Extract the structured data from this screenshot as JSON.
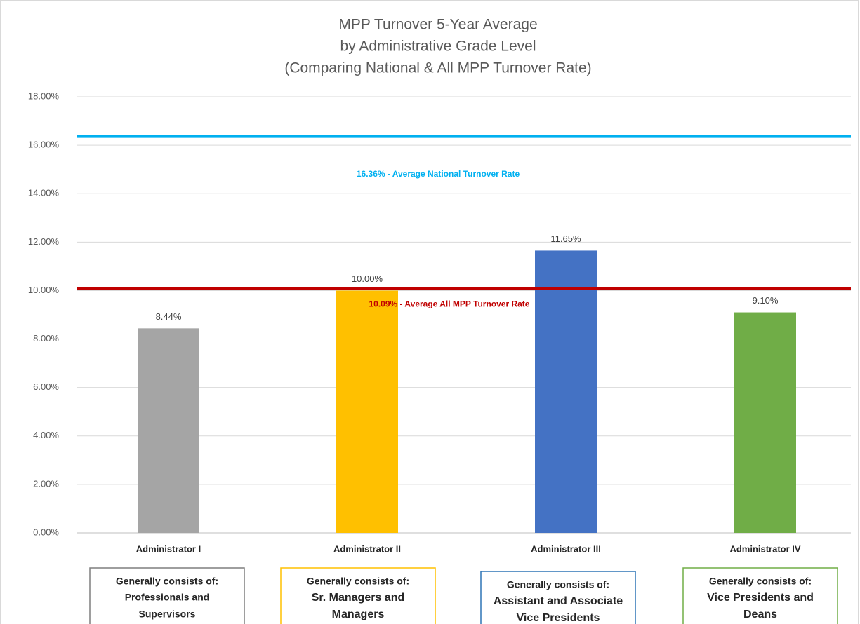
{
  "chart_data": {
    "type": "bar",
    "title": [
      "MPP Turnover 5-Year Average",
      "by Administrative Grade Level",
      "(Comparing National & All MPP Turnover Rate)"
    ],
    "categories": [
      "Administrator I",
      "Administrator II",
      "Administrator III",
      "Administrator IV"
    ],
    "values": [
      8.44,
      10.0,
      11.65,
      9.1
    ],
    "value_labels": [
      "8.44%",
      "10.00%",
      "11.65%",
      "9.10%"
    ],
    "colors": [
      "#a5a5a5",
      "#ffc000",
      "#4472c4",
      "#70ad47"
    ],
    "ylim": [
      0,
      18
    ],
    "yticks": [
      {
        "value": 0,
        "label": "0.00%"
      },
      {
        "value": 2,
        "label": "2.00%"
      },
      {
        "value": 4,
        "label": "4.00%"
      },
      {
        "value": 6,
        "label": "6.00%"
      },
      {
        "value": 8,
        "label": "8.00%"
      },
      {
        "value": 10,
        "label": "10.00%"
      },
      {
        "value": 12,
        "label": "12.00%"
      },
      {
        "value": 14,
        "label": "14.00%"
      },
      {
        "value": 16,
        "label": "16.00%"
      },
      {
        "value": 18,
        "label": "18.00%"
      }
    ],
    "grid": true,
    "reference_lines": [
      {
        "value": 16.36,
        "label": "16.36% - Average National Turnover Rate",
        "color": "#00b0f0"
      },
      {
        "value": 10.09,
        "label": "10.09% - Average All MPP Turnover Rate",
        "color": "#c00000"
      }
    ],
    "category_notes": [
      {
        "heading": "Generally consists of:",
        "lines": [
          "Professionals and",
          "Supervisors"
        ],
        "color": "#7f7f7f"
      },
      {
        "heading": "Generally consists of:",
        "lines": [
          "Sr. Managers and",
          "Managers"
        ],
        "color": "#ffc000"
      },
      {
        "heading": "Generally consists of:",
        "lines": [
          "Assistant and Associate",
          "Vice Presidents"
        ],
        "color": "#2e75b6"
      },
      {
        "heading": "Generally consists of:",
        "lines": [
          "Vice Presidents and",
          "Deans"
        ],
        "color": "#70ad47"
      }
    ]
  }
}
